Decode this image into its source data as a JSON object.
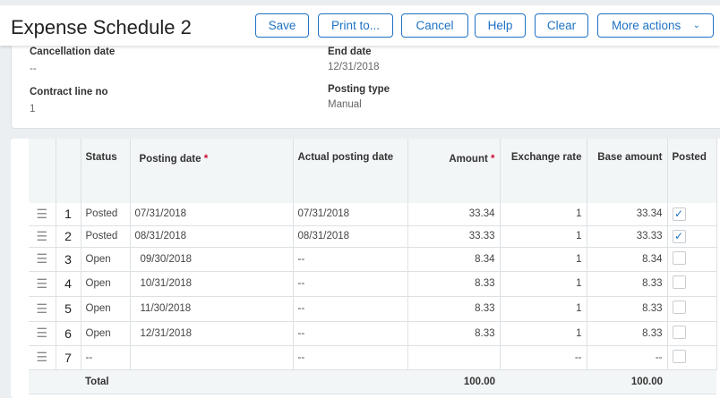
{
  "header": {
    "title": "Expense Schedule 2",
    "buttons": {
      "save": "Save",
      "print": "Print to...",
      "cancel": "Cancel",
      "help": "Help",
      "clear": "Clear",
      "more": "More actions"
    }
  },
  "form": {
    "cancellation_date": {
      "label": "Cancellation date",
      "value": "--"
    },
    "end_date": {
      "label": "End date",
      "value": "12/31/2018"
    },
    "contract_line_no": {
      "label": "Contract line no",
      "value": "1"
    },
    "posting_type": {
      "label": "Posting type",
      "value": "Manual"
    }
  },
  "table": {
    "columns": {
      "status": "Status",
      "posting_date": "Posting date",
      "actual_posting_date": "Actual posting date",
      "amount": "Amount",
      "exchange_rate": "Exchange rate",
      "base_amount": "Base amount",
      "posted": "Posted"
    },
    "required_mark": "*",
    "rows": [
      {
        "no": "1",
        "status": "Posted",
        "posting_date": "07/31/2018",
        "actual": "07/31/2018",
        "amount": "33.34",
        "rate": "1",
        "base": "33.34",
        "posted": true
      },
      {
        "no": "2",
        "status": "Posted",
        "posting_date": "08/31/2018",
        "actual": "08/31/2018",
        "amount": "33.33",
        "rate": "1",
        "base": "33.33",
        "posted": true
      },
      {
        "no": "3",
        "status": "Open",
        "posting_date": "09/30/2018",
        "actual": "--",
        "amount": "8.34",
        "rate": "1",
        "base": "8.34",
        "posted": false
      },
      {
        "no": "4",
        "status": "Open",
        "posting_date": "10/31/2018",
        "actual": "--",
        "amount": "8.33",
        "rate": "1",
        "base": "8.33",
        "posted": false
      },
      {
        "no": "5",
        "status": "Open",
        "posting_date": "11/30/2018",
        "actual": "--",
        "amount": "8.33",
        "rate": "1",
        "base": "8.33",
        "posted": false
      },
      {
        "no": "6",
        "status": "Open",
        "posting_date": "12/31/2018",
        "actual": "--",
        "amount": "8.33",
        "rate": "1",
        "base": "8.33",
        "posted": false
      },
      {
        "no": "7",
        "status": "--",
        "posting_date": "",
        "actual": "--",
        "amount": "",
        "rate": "--",
        "base": "--",
        "posted": false
      }
    ],
    "total": {
      "label": "Total",
      "amount": "100.00",
      "base": "100.00"
    }
  },
  "colors": {
    "accent": "#1f72c4",
    "required": "#c8102e"
  }
}
